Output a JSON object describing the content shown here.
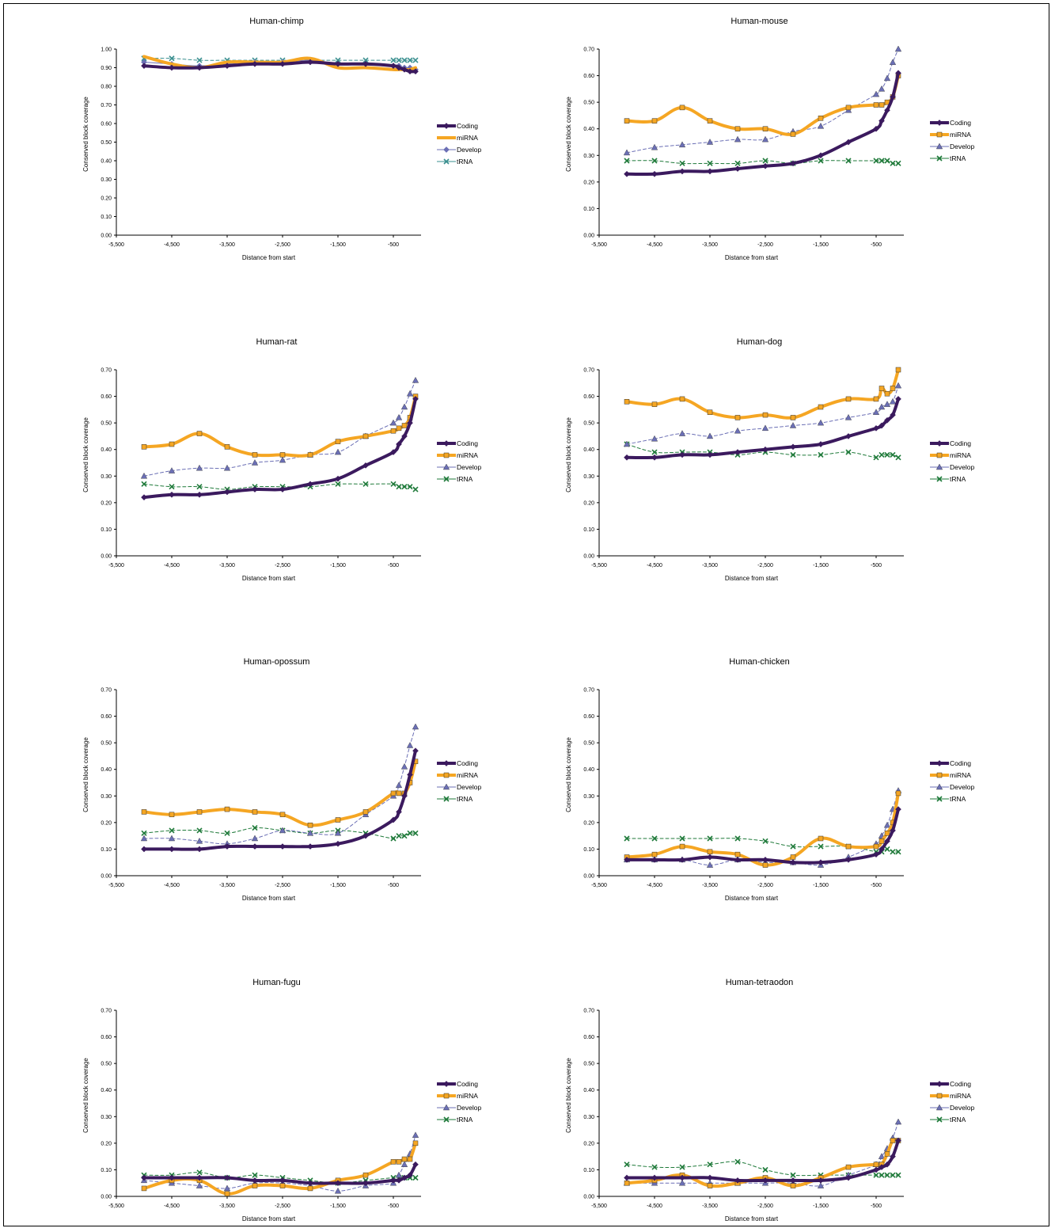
{
  "chart_data": [
    {
      "type": "line",
      "title": "Human-chimp",
      "xlabel": "Distance from start",
      "ylabel": "Conserved block coverage",
      "xlim": [
        -5500,
        0
      ],
      "ylim": [
        0,
        1.0
      ],
      "xticks": [
        "-5,500",
        "-4,500",
        "-3,500",
        "-2,500",
        "-1,500",
        "-500"
      ],
      "yticks": [
        "0.00",
        "0.10",
        "0.20",
        "0.30",
        "0.40",
        "0.50",
        "0.60",
        "0.70",
        "0.80",
        "0.90",
        "1.00"
      ],
      "x": [
        -5000,
        -4500,
        -4000,
        -3500,
        -3000,
        -2500,
        -2000,
        -1500,
        -1000,
        -500,
        -400,
        -300,
        -200,
        -100
      ],
      "legend": "right",
      "series": [
        {
          "name": "Coding",
          "values": [
            0.91,
            0.9,
            0.9,
            0.91,
            0.92,
            0.92,
            0.93,
            0.92,
            0.92,
            0.91,
            0.9,
            0.89,
            0.88,
            0.88
          ]
        },
        {
          "name": "miRNA",
          "values": [
            0.96,
            0.92,
            0.9,
            0.93,
            0.93,
            0.93,
            0.95,
            0.9,
            0.9,
            0.89,
            0.89,
            0.89,
            0.89,
            0.9
          ]
        },
        {
          "name": "Develop",
          "values": [
            0.93,
            0.92,
            0.91,
            0.92,
            0.93,
            0.93,
            0.94,
            0.92,
            0.92,
            0.91,
            0.91,
            0.9,
            0.9,
            0.89
          ]
        },
        {
          "name": "tRNA",
          "values": [
            0.95,
            0.95,
            0.94,
            0.94,
            0.94,
            0.94,
            0.94,
            0.94,
            0.94,
            0.94,
            0.94,
            0.94,
            0.94,
            0.94
          ]
        }
      ]
    },
    {
      "type": "line",
      "title": "Human-mouse",
      "xlabel": "Distance from start",
      "ylabel": "Conserved block coverage",
      "xlim": [
        -5500,
        0
      ],
      "ylim": [
        0,
        0.7
      ],
      "xticks": [
        "-5,500",
        "-4,500",
        "-3,500",
        "-2,500",
        "-1,500",
        "-500"
      ],
      "yticks": [
        "0.00",
        "0.10",
        "0.20",
        "0.30",
        "0.40",
        "0.50",
        "0.60",
        "0.70"
      ],
      "x": [
        -5000,
        -4500,
        -4000,
        -3500,
        -3000,
        -2500,
        -2000,
        -1500,
        -1000,
        -500,
        -400,
        -300,
        -200,
        -100
      ],
      "legend": "right",
      "series": [
        {
          "name": "Coding",
          "values": [
            0.23,
            0.23,
            0.24,
            0.24,
            0.25,
            0.26,
            0.27,
            0.3,
            0.35,
            0.4,
            0.43,
            0.47,
            0.52,
            0.61
          ]
        },
        {
          "name": "miRNA",
          "values": [
            0.43,
            0.43,
            0.48,
            0.43,
            0.4,
            0.4,
            0.38,
            0.44,
            0.48,
            0.49,
            0.49,
            0.5,
            0.52,
            0.6
          ]
        },
        {
          "name": "Develop",
          "values": [
            0.31,
            0.33,
            0.34,
            0.35,
            0.36,
            0.36,
            0.39,
            0.41,
            0.47,
            0.53,
            0.55,
            0.59,
            0.65,
            0.7
          ]
        },
        {
          "name": "tRNA",
          "values": [
            0.28,
            0.28,
            0.27,
            0.27,
            0.27,
            0.28,
            0.27,
            0.28,
            0.28,
            0.28,
            0.28,
            0.28,
            0.27,
            0.27
          ]
        }
      ]
    },
    {
      "type": "line",
      "title": "Human-rat",
      "xlabel": "Distance from start",
      "ylabel": "Conserved block coverage",
      "xlim": [
        -5500,
        0
      ],
      "ylim": [
        0,
        0.7
      ],
      "xticks": [
        "-5,500",
        "-4,500",
        "-3,500",
        "-2,500",
        "-1,500",
        "-500"
      ],
      "yticks": [
        "0.00",
        "0.10",
        "0.20",
        "0.30",
        "0.40",
        "0.50",
        "0.60",
        "0.70"
      ],
      "x": [
        -5000,
        -4500,
        -4000,
        -3500,
        -3000,
        -2500,
        -2000,
        -1500,
        -1000,
        -500,
        -400,
        -300,
        -200,
        -100
      ],
      "legend": "right",
      "series": [
        {
          "name": "Coding",
          "values": [
            0.22,
            0.23,
            0.23,
            0.24,
            0.25,
            0.25,
            0.27,
            0.29,
            0.34,
            0.39,
            0.42,
            0.45,
            0.5,
            0.59
          ]
        },
        {
          "name": "miRNA",
          "values": [
            0.41,
            0.42,
            0.46,
            0.41,
            0.38,
            0.38,
            0.38,
            0.43,
            0.45,
            0.47,
            0.48,
            0.49,
            0.52,
            0.6
          ]
        },
        {
          "name": "Develop",
          "values": [
            0.3,
            0.32,
            0.33,
            0.33,
            0.35,
            0.36,
            0.38,
            0.39,
            0.45,
            0.5,
            0.52,
            0.56,
            0.61,
            0.66
          ]
        },
        {
          "name": "tRNA",
          "values": [
            0.27,
            0.26,
            0.26,
            0.25,
            0.26,
            0.26,
            0.26,
            0.27,
            0.27,
            0.27,
            0.26,
            0.26,
            0.26,
            0.25
          ]
        }
      ]
    },
    {
      "type": "line",
      "title": "Human-dog",
      "xlabel": "Distance from start",
      "ylabel": "Conserved block coverage",
      "xlim": [
        -5500,
        0
      ],
      "ylim": [
        0,
        0.7
      ],
      "xticks": [
        "-5,500",
        "-4,500",
        "-3,500",
        "-2,500",
        "-1,500",
        "-500"
      ],
      "yticks": [
        "0.00",
        "0.10",
        "0.20",
        "0.30",
        "0.40",
        "0.50",
        "0.60",
        "0.70"
      ],
      "x": [
        -5000,
        -4500,
        -4000,
        -3500,
        -3000,
        -2500,
        -2000,
        -1500,
        -1000,
        -500,
        -400,
        -300,
        -200,
        -100
      ],
      "legend": "right",
      "series": [
        {
          "name": "Coding",
          "values": [
            0.37,
            0.37,
            0.38,
            0.38,
            0.39,
            0.4,
            0.41,
            0.42,
            0.45,
            0.48,
            0.49,
            0.51,
            0.53,
            0.59
          ]
        },
        {
          "name": "miRNA",
          "values": [
            0.58,
            0.57,
            0.59,
            0.54,
            0.52,
            0.53,
            0.52,
            0.56,
            0.59,
            0.59,
            0.63,
            0.61,
            0.63,
            0.7
          ]
        },
        {
          "name": "Develop",
          "values": [
            0.42,
            0.44,
            0.46,
            0.45,
            0.47,
            0.48,
            0.49,
            0.5,
            0.52,
            0.54,
            0.56,
            0.57,
            0.58,
            0.64
          ]
        },
        {
          "name": "tRNA",
          "values": [
            0.42,
            0.39,
            0.39,
            0.39,
            0.38,
            0.39,
            0.38,
            0.38,
            0.39,
            0.37,
            0.38,
            0.38,
            0.38,
            0.37
          ]
        }
      ]
    },
    {
      "type": "line",
      "title": "Human-opossum",
      "xlabel": "Distance from start",
      "ylabel": "Conserved block coverage",
      "xlim": [
        -5500,
        0
      ],
      "ylim": [
        0,
        0.7
      ],
      "xticks": [
        "-5,500",
        "-4,500",
        "-3,500",
        "-2,500",
        "-1,500",
        "-500"
      ],
      "yticks": [
        "0.00",
        "0.10",
        "0.20",
        "0.30",
        "0.40",
        "0.50",
        "0.60",
        "0.70"
      ],
      "x": [
        -5000,
        -4500,
        -4000,
        -3500,
        -3000,
        -2500,
        -2000,
        -1500,
        -1000,
        -500,
        -400,
        -300,
        -200,
        -100
      ],
      "legend": "right",
      "series": [
        {
          "name": "Coding",
          "values": [
            0.1,
            0.1,
            0.1,
            0.11,
            0.11,
            0.11,
            0.11,
            0.12,
            0.15,
            0.21,
            0.24,
            0.3,
            0.38,
            0.47
          ]
        },
        {
          "name": "miRNA",
          "values": [
            0.24,
            0.23,
            0.24,
            0.25,
            0.24,
            0.23,
            0.19,
            0.21,
            0.24,
            0.31,
            0.31,
            0.31,
            0.35,
            0.43
          ]
        },
        {
          "name": "Develop",
          "values": [
            0.14,
            0.14,
            0.13,
            0.12,
            0.14,
            0.17,
            0.16,
            0.16,
            0.23,
            0.3,
            0.34,
            0.41,
            0.49,
            0.56
          ]
        },
        {
          "name": "tRNA",
          "values": [
            0.16,
            0.17,
            0.17,
            0.16,
            0.18,
            0.17,
            0.16,
            0.17,
            0.16,
            0.14,
            0.15,
            0.15,
            0.16,
            0.16
          ]
        }
      ]
    },
    {
      "type": "line",
      "title": "Human-chicken",
      "xlabel": "Distance from start",
      "ylabel": "Conserved block coverage",
      "xlim": [
        -5500,
        0
      ],
      "ylim": [
        0,
        0.7
      ],
      "xticks": [
        "-5,500",
        "-4,500",
        "-3,500",
        "-2,500",
        "-1,500",
        "-500"
      ],
      "yticks": [
        "0.00",
        "0.10",
        "0.20",
        "0.30",
        "0.40",
        "0.50",
        "0.60",
        "0.70"
      ],
      "x": [
        -5000,
        -4500,
        -4000,
        -3500,
        -3000,
        -2500,
        -2000,
        -1500,
        -1000,
        -500,
        -400,
        -300,
        -200,
        -100
      ],
      "legend": "right",
      "series": [
        {
          "name": "Coding",
          "values": [
            0.06,
            0.06,
            0.06,
            0.07,
            0.06,
            0.06,
            0.05,
            0.05,
            0.06,
            0.08,
            0.1,
            0.13,
            0.17,
            0.25
          ]
        },
        {
          "name": "miRNA",
          "values": [
            0.07,
            0.08,
            0.11,
            0.09,
            0.08,
            0.04,
            0.07,
            0.14,
            0.11,
            0.11,
            0.13,
            0.16,
            0.2,
            0.31
          ]
        },
        {
          "name": "Develop",
          "values": [
            0.06,
            0.06,
            0.06,
            0.04,
            0.06,
            0.05,
            0.05,
            0.04,
            0.07,
            0.12,
            0.15,
            0.19,
            0.25,
            0.32
          ]
        },
        {
          "name": "tRNA",
          "values": [
            0.14,
            0.14,
            0.14,
            0.14,
            0.14,
            0.13,
            0.11,
            0.11,
            0.11,
            0.09,
            0.09,
            0.1,
            0.09,
            0.09
          ]
        }
      ]
    },
    {
      "type": "line",
      "title": "Human-fugu",
      "xlabel": "Distance from start",
      "ylabel": "Conserved block coverage",
      "xlim": [
        -5500,
        0
      ],
      "ylim": [
        0,
        0.7
      ],
      "xticks": [
        "-5,500",
        "-4,500",
        "-3,500",
        "-2,500",
        "-1,500",
        "-500"
      ],
      "yticks": [
        "0.00",
        "0.10",
        "0.20",
        "0.30",
        "0.40",
        "0.50",
        "0.60",
        "0.70"
      ],
      "x": [
        -5000,
        -4500,
        -4000,
        -3500,
        -3000,
        -2500,
        -2000,
        -1500,
        -1000,
        -500,
        -400,
        -300,
        -200,
        -100
      ],
      "legend": "right",
      "series": [
        {
          "name": "Coding",
          "values": [
            0.07,
            0.07,
            0.07,
            0.07,
            0.06,
            0.06,
            0.05,
            0.05,
            0.05,
            0.06,
            0.06,
            0.07,
            0.08,
            0.12
          ]
        },
        {
          "name": "miRNA",
          "values": [
            0.03,
            0.06,
            0.06,
            0.01,
            0.04,
            0.04,
            0.03,
            0.06,
            0.08,
            0.13,
            0.13,
            0.14,
            0.14,
            0.2
          ]
        },
        {
          "name": "Develop",
          "values": [
            0.06,
            0.05,
            0.04,
            0.03,
            0.05,
            0.05,
            0.04,
            0.02,
            0.04,
            0.05,
            0.08,
            0.12,
            0.16,
            0.23
          ]
        },
        {
          "name": "tRNA",
          "values": [
            0.08,
            0.08,
            0.09,
            0.07,
            0.08,
            0.07,
            0.06,
            0.05,
            0.06,
            0.07,
            0.07,
            0.07,
            0.07,
            0.07
          ]
        }
      ]
    },
    {
      "type": "line",
      "title": "Human-tetraodon",
      "xlabel": "Distance from start",
      "ylabel": "Conserved block coverage",
      "xlim": [
        -5500,
        0
      ],
      "ylim": [
        0,
        0.7
      ],
      "xticks": [
        "-5,500",
        "-4,500",
        "-3,500",
        "-2,500",
        "-1,500",
        "-500"
      ],
      "yticks": [
        "0.00",
        "0.10",
        "0.20",
        "0.30",
        "0.40",
        "0.50",
        "0.60",
        "0.70"
      ],
      "x": [
        -5000,
        -4500,
        -4000,
        -3500,
        -3000,
        -2500,
        -2000,
        -1500,
        -1000,
        -500,
        -400,
        -300,
        -200,
        -100
      ],
      "legend": "right",
      "series": [
        {
          "name": "Coding",
          "values": [
            0.07,
            0.07,
            0.07,
            0.07,
            0.06,
            0.06,
            0.06,
            0.06,
            0.07,
            0.1,
            0.11,
            0.12,
            0.15,
            0.21
          ]
        },
        {
          "name": "miRNA",
          "values": [
            0.05,
            0.06,
            0.08,
            0.04,
            0.05,
            0.07,
            0.04,
            0.07,
            0.11,
            0.12,
            0.12,
            0.16,
            0.21,
            0.21
          ]
        },
        {
          "name": "Develop",
          "values": [
            0.05,
            0.05,
            0.05,
            0.05,
            0.05,
            0.05,
            0.05,
            0.04,
            0.08,
            0.12,
            0.15,
            0.18,
            0.22,
            0.28
          ]
        },
        {
          "name": "tRNA",
          "values": [
            0.12,
            0.11,
            0.11,
            0.12,
            0.13,
            0.1,
            0.08,
            0.08,
            0.08,
            0.08,
            0.08,
            0.08,
            0.08,
            0.08
          ]
        }
      ]
    }
  ],
  "series_styles": [
    {
      "name": "Coding",
      "color": "#3b1a5e",
      "dash": "solid",
      "width": "thick",
      "marker": "diamond"
    },
    {
      "name": "miRNA",
      "color": "#f5a623",
      "dash": "solid",
      "width": "thick",
      "marker": "square"
    },
    {
      "name": "Develop",
      "color": "#6b6fb5",
      "dash": "dashed",
      "width": "thin",
      "marker": "triangle"
    },
    {
      "name": "tRNA",
      "color": "#1f7a3a",
      "dash": "dashed",
      "width": "thin",
      "marker": "x"
    }
  ],
  "series_styles_chimp": [
    {
      "name": "Coding",
      "color": "#3b1a5e",
      "dash": "solid",
      "width": "thick",
      "marker": "diamond"
    },
    {
      "name": "miRNA",
      "color": "#f5a623",
      "dash": "solid",
      "width": "thick",
      "marker": "none"
    },
    {
      "name": "Develop",
      "color": "#6b6fb5",
      "dash": "solid",
      "width": "thin",
      "marker": "diamond"
    },
    {
      "name": "tRNA",
      "color": "#3a8f8f",
      "dash": "dashed",
      "width": "thin",
      "marker": "x"
    }
  ]
}
